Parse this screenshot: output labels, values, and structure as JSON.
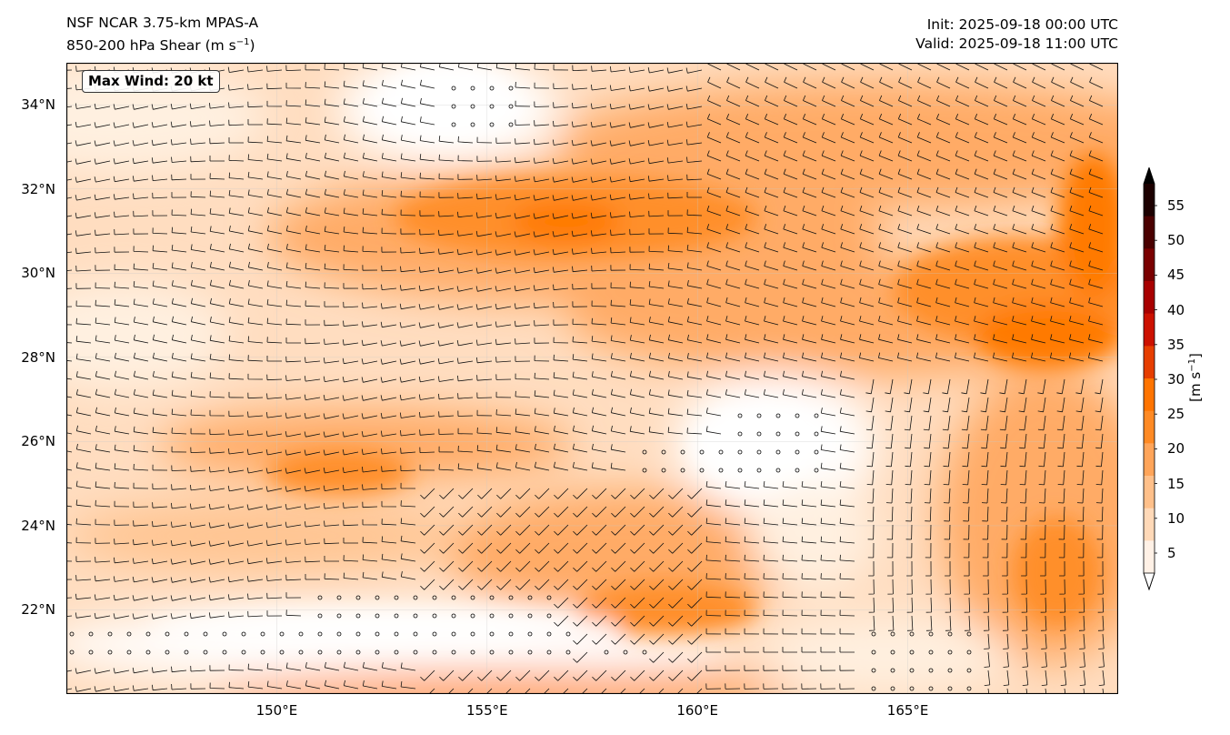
{
  "header": {
    "model": "NSF NCAR 3.75-km MPAS-A",
    "field_text": "850-200 hPa Shear (m s",
    "field_sup": "−1",
    "field_close": ")",
    "init": "Init: 2025-09-18 00:00 UTC",
    "valid": "Valid: 2025-09-18 11:00 UTC"
  },
  "map": {
    "lon_range": [
      145,
      170
    ],
    "lat_range": [
      20,
      35
    ],
    "max_wind_label": "Max Wind: 20 kt",
    "lat_ticks": [
      "34°N",
      "32°N",
      "30°N",
      "28°N",
      "26°N",
      "24°N",
      "22°N"
    ],
    "lat_values": [
      34,
      32,
      30,
      28,
      26,
      24,
      22
    ],
    "lon_ticks": [
      "150°E",
      "155°E",
      "160°E",
      "165°E"
    ],
    "lon_values": [
      150,
      155,
      160,
      165
    ],
    "colors": {
      "levels": [
        5,
        10,
        15,
        20,
        25,
        30,
        35,
        40,
        45,
        50,
        55
      ],
      "fills": [
        "#ffffff",
        "#fff0e0",
        "#ffddc0",
        "#ffc592",
        "#ffab66",
        "#ff8f2a",
        "#ff7a00",
        "#ff6a00"
      ]
    }
  },
  "colorbar": {
    "ticks": [
      "55",
      "50",
      "45",
      "40",
      "35",
      "30",
      "25",
      "20",
      "15",
      "10",
      "5"
    ],
    "tick_values": [
      55,
      50,
      45,
      40,
      35,
      30,
      25,
      20,
      15,
      10,
      5
    ],
    "colors": [
      "#fff1e6",
      "#ffd9b8",
      "#ffc08a",
      "#ffa55a",
      "#ff8a24",
      "#ff7400",
      "#e63e00",
      "#cc1100",
      "#a80000",
      "#7a0000",
      "#4a0000",
      "#1c0000"
    ],
    "label_text": "[m s",
    "label_sup": "−1",
    "label_close": "]"
  }
}
